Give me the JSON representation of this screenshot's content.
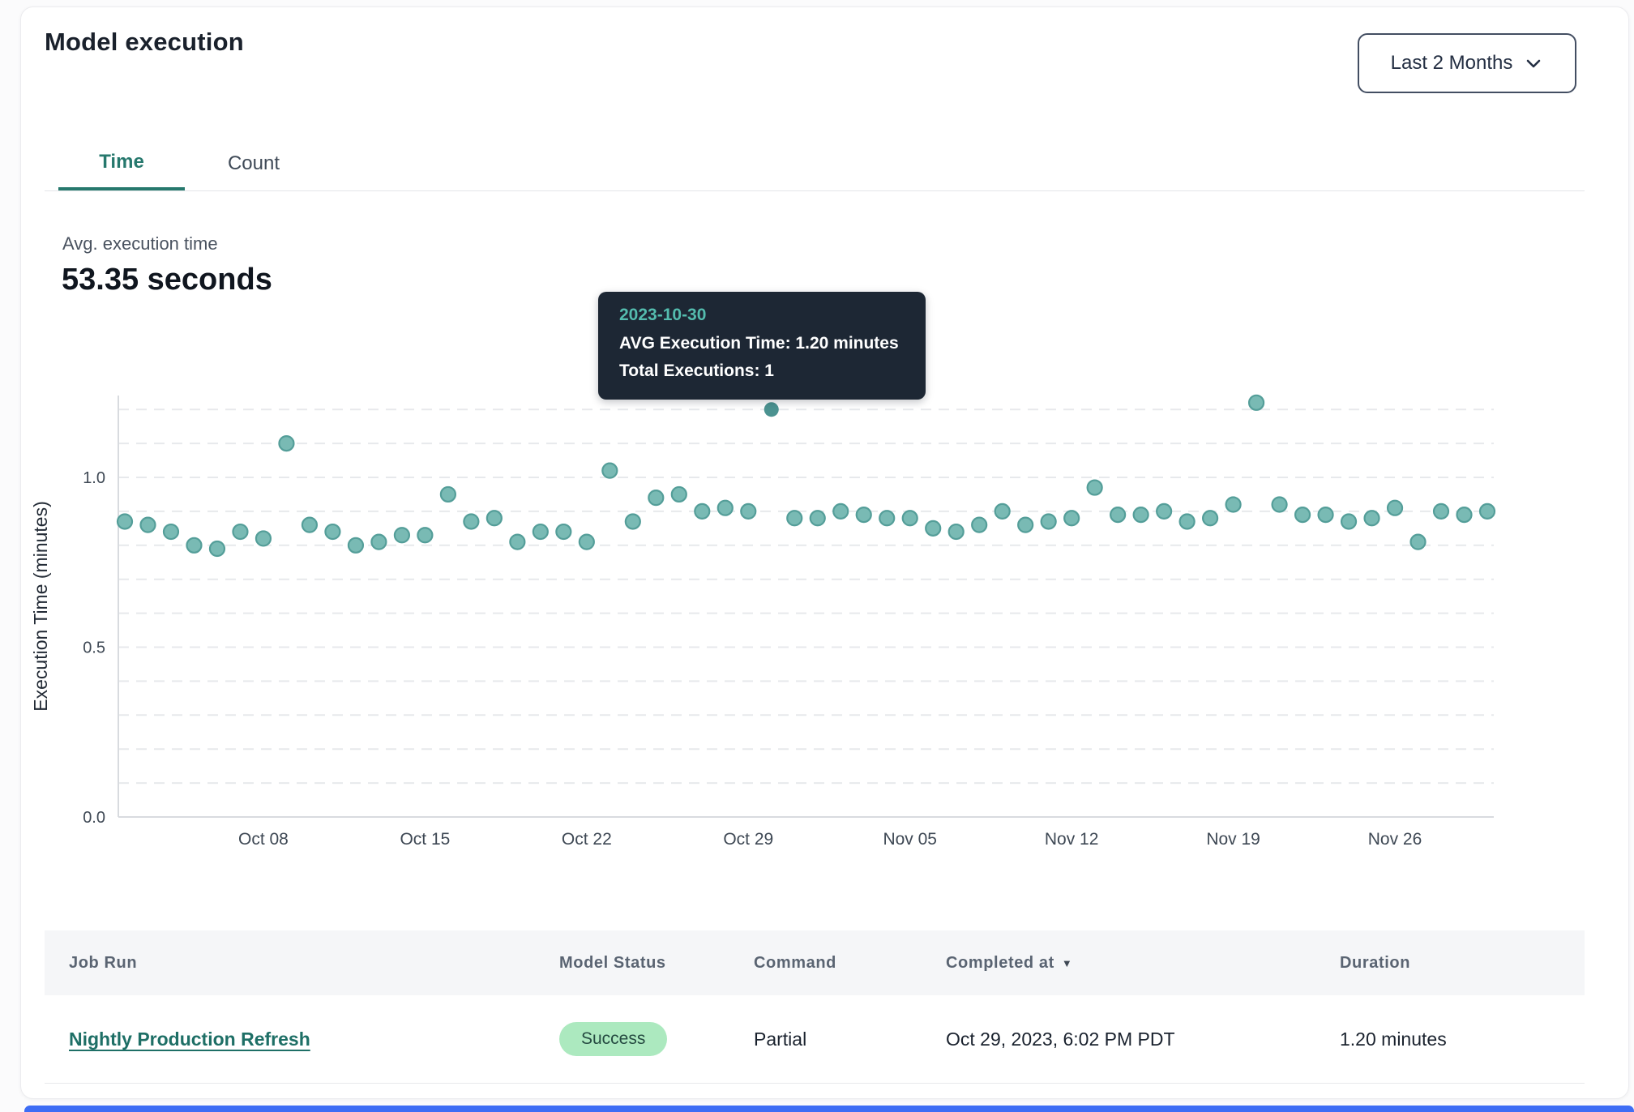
{
  "header": {
    "title": "Model execution",
    "range_selector": {
      "value": "Last 2 Months"
    }
  },
  "tabs": [
    {
      "label": "Time",
      "active": true
    },
    {
      "label": "Count",
      "active": false
    }
  ],
  "summary": {
    "label": "Avg. execution time",
    "value": "53.35 seconds"
  },
  "tooltip": {
    "date": "2023-10-30",
    "line1": "AVG Execution Time: 1.20 minutes",
    "line2": "Total Executions: 1"
  },
  "chart_data": {
    "type": "scatter",
    "title": "",
    "xlabel": "",
    "ylabel": "Execution Time (minutes)",
    "ylim": [
      0,
      1.25
    ],
    "yticks": [
      0.0,
      0.5,
      1.0
    ],
    "grid": "horizontal dashed every 0.1",
    "legend": "none",
    "x_tick_labels": [
      "Oct 08",
      "Oct 15",
      "Oct 22",
      "Oct 29",
      "Nov 05",
      "Nov 12",
      "Nov 19",
      "Nov 26"
    ],
    "series": [
      {
        "name": "AVG Execution Time (minutes)",
        "points": [
          {
            "date": "2023-10-02",
            "value": 0.87
          },
          {
            "date": "2023-10-03",
            "value": 0.86
          },
          {
            "date": "2023-10-04",
            "value": 0.84
          },
          {
            "date": "2023-10-05",
            "value": 0.8
          },
          {
            "date": "2023-10-06",
            "value": 0.79
          },
          {
            "date": "2023-10-07",
            "value": 0.84
          },
          {
            "date": "2023-10-08",
            "value": 0.82
          },
          {
            "date": "2023-10-09",
            "value": 1.1
          },
          {
            "date": "2023-10-10",
            "value": 0.86
          },
          {
            "date": "2023-10-11",
            "value": 0.84
          },
          {
            "date": "2023-10-12",
            "value": 0.8
          },
          {
            "date": "2023-10-13",
            "value": 0.81
          },
          {
            "date": "2023-10-14",
            "value": 0.83
          },
          {
            "date": "2023-10-15",
            "value": 0.83
          },
          {
            "date": "2023-10-16",
            "value": 0.95
          },
          {
            "date": "2023-10-17",
            "value": 0.87
          },
          {
            "date": "2023-10-18",
            "value": 0.88
          },
          {
            "date": "2023-10-19",
            "value": 0.81
          },
          {
            "date": "2023-10-20",
            "value": 0.84
          },
          {
            "date": "2023-10-21",
            "value": 0.84
          },
          {
            "date": "2023-10-22",
            "value": 0.81
          },
          {
            "date": "2023-10-23",
            "value": 1.02
          },
          {
            "date": "2023-10-24",
            "value": 0.87
          },
          {
            "date": "2023-10-25",
            "value": 0.94
          },
          {
            "date": "2023-10-26",
            "value": 0.95
          },
          {
            "date": "2023-10-27",
            "value": 0.9
          },
          {
            "date": "2023-10-28",
            "value": 0.91
          },
          {
            "date": "2023-10-29",
            "value": 0.9
          },
          {
            "date": "2023-10-30",
            "value": 1.2
          },
          {
            "date": "2023-10-31",
            "value": 0.88
          },
          {
            "date": "2023-11-01",
            "value": 0.88
          },
          {
            "date": "2023-11-02",
            "value": 0.9
          },
          {
            "date": "2023-11-03",
            "value": 0.89
          },
          {
            "date": "2023-11-04",
            "value": 0.88
          },
          {
            "date": "2023-11-05",
            "value": 0.88
          },
          {
            "date": "2023-11-06",
            "value": 0.85
          },
          {
            "date": "2023-11-07",
            "value": 0.84
          },
          {
            "date": "2023-11-08",
            "value": 0.86
          },
          {
            "date": "2023-11-09",
            "value": 0.9
          },
          {
            "date": "2023-11-10",
            "value": 0.86
          },
          {
            "date": "2023-11-11",
            "value": 0.87
          },
          {
            "date": "2023-11-12",
            "value": 0.88
          },
          {
            "date": "2023-11-13",
            "value": 0.97
          },
          {
            "date": "2023-11-14",
            "value": 0.89
          },
          {
            "date": "2023-11-15",
            "value": 0.89
          },
          {
            "date": "2023-11-16",
            "value": 0.9
          },
          {
            "date": "2023-11-17",
            "value": 0.87
          },
          {
            "date": "2023-11-18",
            "value": 0.88
          },
          {
            "date": "2023-11-19",
            "value": 0.92
          },
          {
            "date": "2023-11-20",
            "value": 1.22
          },
          {
            "date": "2023-11-21",
            "value": 0.92
          },
          {
            "date": "2023-11-22",
            "value": 0.89
          },
          {
            "date": "2023-11-23",
            "value": 0.89
          },
          {
            "date": "2023-11-24",
            "value": 0.87
          },
          {
            "date": "2023-11-25",
            "value": 0.88
          },
          {
            "date": "2023-11-26",
            "value": 0.91
          },
          {
            "date": "2023-11-27",
            "value": 0.81
          },
          {
            "date": "2023-11-28",
            "value": 0.9
          },
          {
            "date": "2023-11-29",
            "value": 0.89
          },
          {
            "date": "2023-11-30",
            "value": 0.9
          }
        ]
      }
    ],
    "highlighted_point": {
      "date": "2023-10-30",
      "value": 1.2
    }
  },
  "table": {
    "columns": [
      "Job Run",
      "Model Status",
      "Command",
      "Completed at",
      "Duration"
    ],
    "sorted_column": "Completed at",
    "sort_direction": "desc",
    "rows": [
      {
        "job_run": "Nightly Production Refresh",
        "model_status": "Success",
        "command": "Partial",
        "completed_at": "Oct 29, 2023, 6:02 PM PDT",
        "duration": "1.20 minutes"
      }
    ]
  },
  "colors": {
    "accent_teal": "#26786d",
    "link": "#1e6f66",
    "point_fill": "#79bab4",
    "point_stroke": "#549e99",
    "point_highlight": "#4b9290",
    "grid": "#e7e9ec",
    "axis": "#d8dbdf",
    "tick_text": "#3e4854",
    "tooltip_bg": "#1d2734",
    "tooltip_date": "#54bcae",
    "badge_bg": "#ace9bf",
    "badge_text": "#254a41",
    "blue_bar": "#3e6df5"
  }
}
